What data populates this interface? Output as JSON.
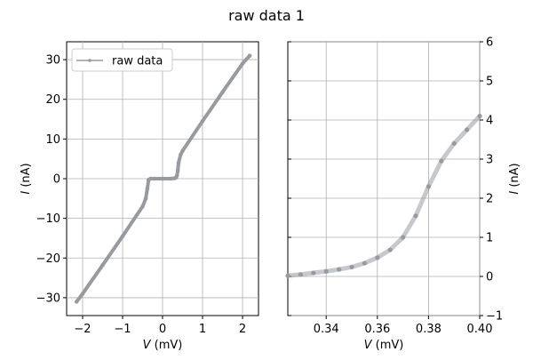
{
  "figure": {
    "title": "raw data 1"
  },
  "chart_data": [
    {
      "type": "line",
      "name": "left-panel",
      "xlabel_var": "V",
      "xlabel_unit": " (mV)",
      "ylabel_var": "I",
      "ylabel_unit": " (nA)",
      "xlim": [
        -2.4,
        2.4
      ],
      "ylim": [
        -34.5,
        34.5
      ],
      "xticks": [
        -2,
        -1,
        0,
        1,
        2
      ],
      "yticks": [
        -30,
        -20,
        -10,
        0,
        10,
        20,
        30
      ],
      "grid": true,
      "legend": {
        "position": "top-left",
        "entries": [
          "raw data"
        ]
      },
      "series": [
        {
          "name": "raw data",
          "color": "#979aa1",
          "x": [
            -2.15,
            -2.0,
            -1.5,
            -1.0,
            -0.5,
            -0.42,
            -0.38,
            -0.35,
            -0.3,
            -0.2,
            0.0,
            0.2,
            0.3,
            0.34,
            0.36,
            0.38,
            0.4,
            0.45,
            0.5,
            1.0,
            1.5,
            2.0,
            2.18
          ],
          "y": [
            -31,
            -29,
            -21.8,
            -14.5,
            -7,
            -5,
            -2.5,
            -0.3,
            0,
            0,
            0,
            0,
            0.1,
            0.3,
            0.8,
            2,
            4,
            6,
            7,
            14.5,
            21.8,
            29,
            31
          ]
        }
      ]
    },
    {
      "type": "scatter",
      "name": "right-panel",
      "xlabel_var": "V",
      "xlabel_unit": " (mV)",
      "ylabel_var": "I",
      "ylabel_unit": " (nA)",
      "xlim": [
        0.325,
        0.4
      ],
      "ylim": [
        -1,
        6
      ],
      "xticks": [
        0.34,
        0.36,
        0.38,
        0.4
      ],
      "xtick_labels": [
        "0.34",
        "0.36",
        "0.38",
        "0.40"
      ],
      "yticks": [
        -1,
        0,
        1,
        2,
        3,
        4,
        5,
        6
      ],
      "yaxis_side": "right",
      "grid": true,
      "series": [
        {
          "name": "raw data",
          "color": "#979aa1",
          "x": [
            0.325,
            0.33,
            0.335,
            0.34,
            0.345,
            0.35,
            0.355,
            0.36,
            0.365,
            0.37,
            0.375,
            0.38,
            0.385,
            0.39,
            0.395,
            0.4
          ],
          "y": [
            0.02,
            0.05,
            0.09,
            0.13,
            0.18,
            0.24,
            0.34,
            0.48,
            0.68,
            1.0,
            1.55,
            2.3,
            2.95,
            3.4,
            3.75,
            4.1
          ]
        }
      ]
    }
  ]
}
